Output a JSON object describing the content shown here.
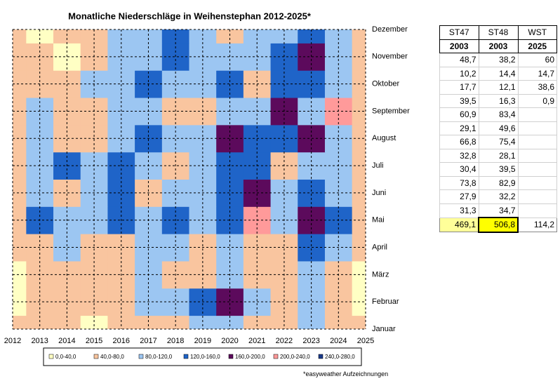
{
  "chart_data": {
    "type": "contour",
    "title": "Monatliche Niederschläge in Weihenstephan 2012-2025*",
    "x": [
      2012,
      2013,
      2014,
      2015,
      2016,
      2017,
      2018,
      2019,
      2020,
      2021,
      2022,
      2023,
      2024,
      2025
    ],
    "xlim": [
      2012,
      2025
    ],
    "xticks": [
      2012,
      2013,
      2014,
      2015,
      2016,
      2017,
      2018,
      2019,
      2020,
      2021,
      2022,
      2023,
      2024,
      2025
    ],
    "categories": [
      "Januar",
      "Februar",
      "März",
      "April",
      "Mai",
      "Juni",
      "Juli",
      "August",
      "September",
      "Oktober",
      "November",
      "Dezember"
    ],
    "values": [
      [
        50,
        60,
        50,
        30,
        50,
        70,
        60,
        90,
        100,
        60,
        70,
        100,
        40,
        40
      ],
      [
        30,
        50,
        60,
        50,
        50,
        100,
        90,
        130,
        180,
        100,
        60,
        110,
        50,
        30
      ],
      [
        30,
        60,
        40,
        50,
        60,
        80,
        60,
        70,
        100,
        60,
        40,
        90,
        60,
        30
      ],
      [
        50,
        60,
        90,
        50,
        70,
        90,
        100,
        70,
        110,
        60,
        50,
        120,
        80,
        40
      ],
      [
        60,
        130,
        100,
        90,
        140,
        90,
        120,
        110,
        130,
        210,
        100,
        180,
        140,
        50
      ],
      [
        50,
        90,
        60,
        100,
        120,
        60,
        110,
        110,
        150,
        170,
        90,
        120,
        90,
        60
      ],
      [
        60,
        100,
        130,
        90,
        130,
        110,
        70,
        80,
        130,
        120,
        60,
        110,
        80,
        60
      ],
      [
        50,
        90,
        60,
        60,
        110,
        120,
        90,
        100,
        180,
        130,
        130,
        180,
        100,
        50
      ],
      [
        50,
        80,
        60,
        50,
        90,
        90,
        60,
        70,
        100,
        110,
        190,
        90,
        200,
        60
      ],
      [
        60,
        50,
        60,
        90,
        90,
        140,
        110,
        80,
        130,
        60,
        120,
        130,
        90,
        60
      ],
      [
        50,
        50,
        30,
        60,
        100,
        90,
        130,
        80,
        90,
        100,
        130,
        180,
        100,
        50
      ],
      [
        50,
        30,
        50,
        60,
        90,
        100,
        130,
        90,
        70,
        90,
        100,
        140,
        90,
        50
      ]
    ],
    "grid": true,
    "bands": [
      {
        "label": "0,0-40,0",
        "min": 0,
        "max": 40,
        "color": "#ffffc4"
      },
      {
        "label": "40,0-80,0",
        "min": 40,
        "max": 80,
        "color": "#f9c59f"
      },
      {
        "label": "80,0-120,0",
        "min": 80,
        "max": 120,
        "color": "#9cc6f2"
      },
      {
        "label": "120,0-160,0",
        "min": 120,
        "max": 160,
        "color": "#1f64c8"
      },
      {
        "label": "160,0-200,0",
        "min": 160,
        "max": 200,
        "color": "#5c0a5c"
      },
      {
        "label": "200,0-240,0",
        "min": 200,
        "max": 240,
        "color": "#ff9a9a"
      },
      {
        "label": "240,0-280,0",
        "min": 240,
        "max": 280,
        "color": "#1a3a8a"
      }
    ]
  },
  "table": {
    "header": [
      "ST47",
      "ST48",
      "WST"
    ],
    "years": [
      "2003",
      "2003",
      "2025"
    ],
    "rows": [
      [
        "48,7",
        "38,2",
        "60"
      ],
      [
        "10,2",
        "14,4",
        "14,7"
      ],
      [
        "17,7",
        "12,1",
        "38,6"
      ],
      [
        "39,5",
        "16,3",
        "0,9"
      ],
      [
        "60,9",
        "83,4",
        ""
      ],
      [
        "29,1",
        "49,6",
        ""
      ],
      [
        "66,8",
        "75,4",
        ""
      ],
      [
        "32,8",
        "28,1",
        ""
      ],
      [
        "30,4",
        "39,5",
        ""
      ],
      [
        "73,8",
        "82,9",
        ""
      ],
      [
        "27,9",
        "32,2",
        ""
      ],
      [
        "31,3",
        "34,7",
        ""
      ]
    ],
    "totals": [
      "469,1",
      "506,8",
      "114,2"
    ]
  },
  "footnote": "*easyweather Aufzeichnungen"
}
